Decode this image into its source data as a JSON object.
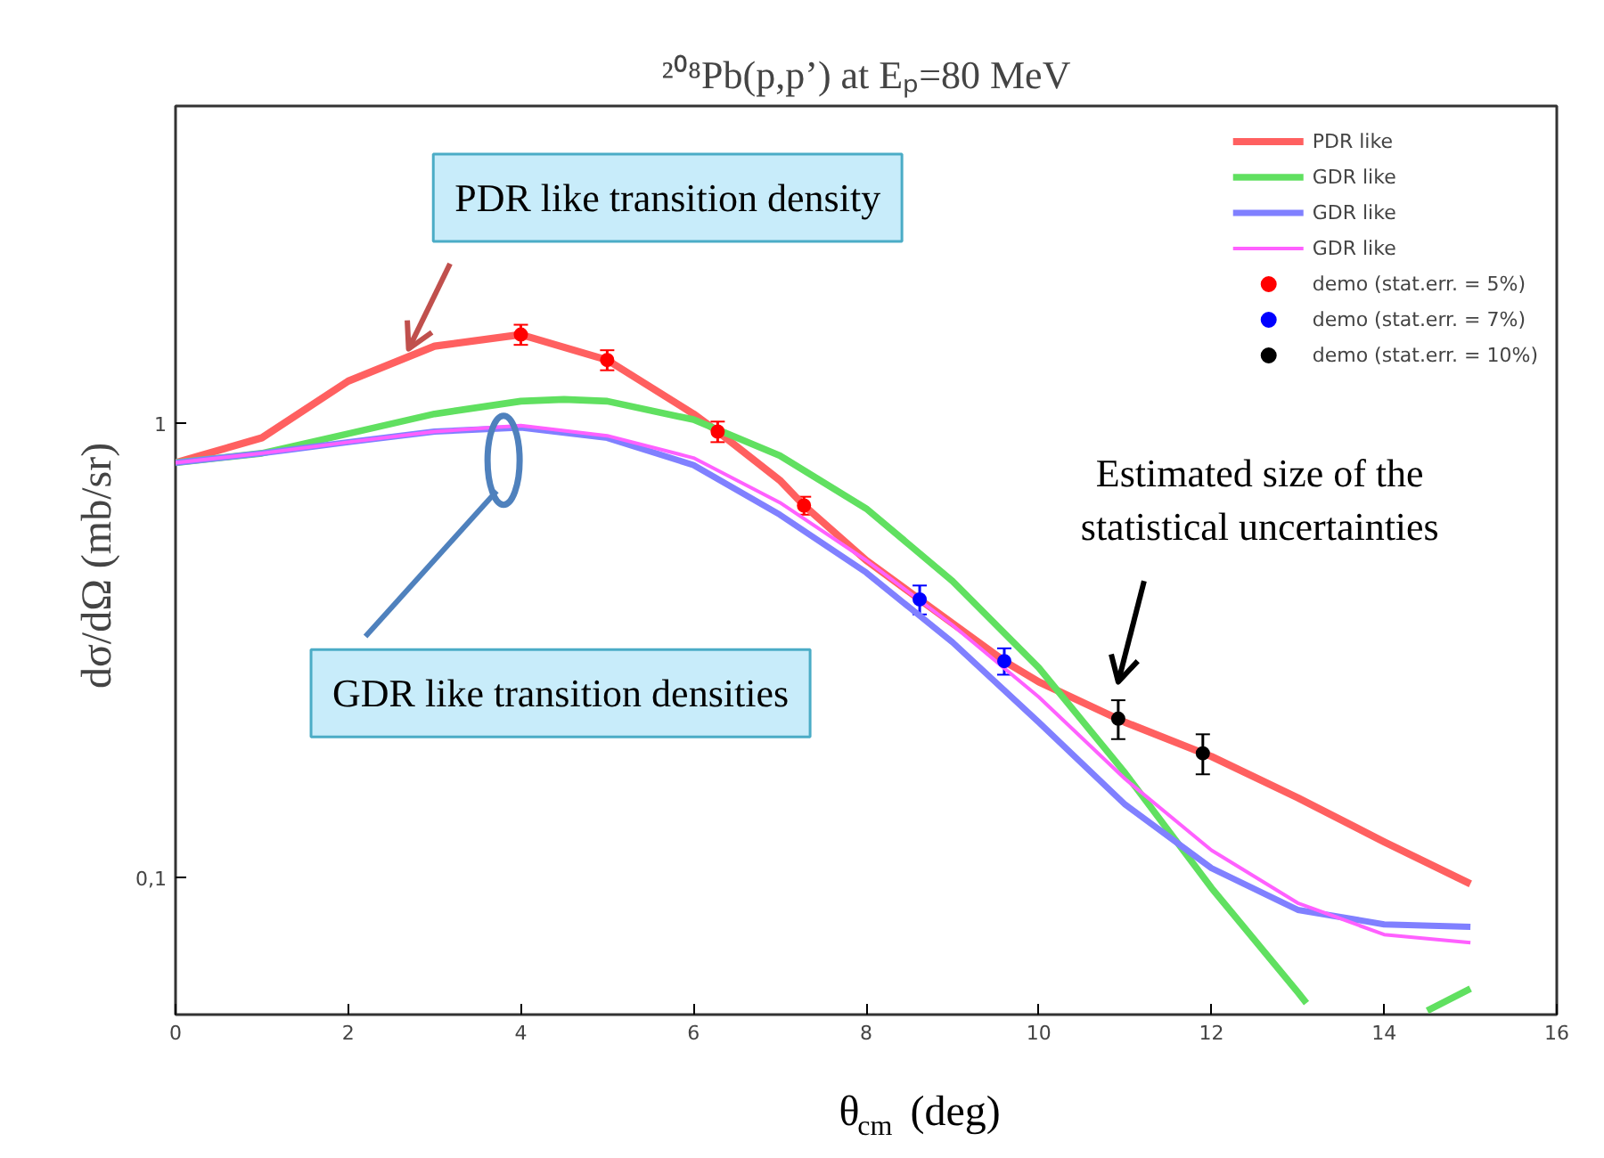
{
  "chart_data": {
    "type": "line",
    "title": "²⁰⁸Pb(p,p’) at Eₚ=80 MeV",
    "xlabel": "θ$_{cm}$  (deg)",
    "ylabel": "dσ/dΩ  (mb/sr)",
    "log": "y",
    "xlim": [
      0,
      16
    ],
    "ylim": [
      0.05,
      5
    ],
    "xticks": [
      0,
      2,
      4,
      6,
      8,
      10,
      12,
      14,
      16
    ],
    "yticks": [
      {
        "value": 0.1,
        "label": "0,1"
      },
      1
    ],
    "grid": false,
    "legend": "top right",
    "series": [
      {
        "name": "PDR like",
        "type": "line",
        "color": "#ff6060",
        "marker": "none",
        "x": [
          0,
          1,
          2,
          3,
          4,
          5,
          6,
          6.28,
          7,
          7.28,
          8,
          8.62,
          9.6,
          10,
          11,
          12,
          13,
          14,
          15
        ],
        "values": [
          0.82,
          0.93,
          1.24,
          1.48,
          1.57,
          1.38,
          1.05,
          0.96,
          0.75,
          0.66,
          0.5,
          0.41,
          0.3,
          0.27,
          0.22,
          0.185,
          0.15,
          0.12,
          0.097
        ]
      },
      {
        "name": "GDR like",
        "type": "line",
        "color": "#60e060",
        "marker": "none",
        "x": [
          0,
          1,
          2,
          3,
          4,
          4.5,
          5,
          6,
          7,
          8,
          9,
          10,
          11,
          12,
          13,
          13.1,
          13.8,
          14.5,
          15
        ],
        "values": [
          0.82,
          0.86,
          0.95,
          1.05,
          1.12,
          1.13,
          1.12,
          1.02,
          0.85,
          0.65,
          0.45,
          0.29,
          0.17,
          0.095,
          0.056,
          0.053,
          null,
          0.051,
          0.057
        ]
      },
      {
        "name": "GDR like",
        "type": "line",
        "color": "#8080ff",
        "marker": "none",
        "x": [
          0,
          1,
          2,
          3,
          4,
          5,
          6,
          7,
          8,
          9,
          10,
          11,
          12,
          13,
          14,
          15
        ],
        "values": [
          0.82,
          0.86,
          0.91,
          0.96,
          0.98,
          0.93,
          0.81,
          0.63,
          0.47,
          0.33,
          0.22,
          0.145,
          0.105,
          0.085,
          0.079,
          0.078
        ]
      },
      {
        "name": "GDR like",
        "type": "line",
        "color": "#ff60ff",
        "marker": "none",
        "x": [
          0,
          1,
          2,
          3,
          4,
          5,
          6,
          7,
          8,
          9,
          10,
          11,
          12,
          13,
          14,
          15
        ],
        "values": [
          0.82,
          0.86,
          0.91,
          0.96,
          0.99,
          0.94,
          0.84,
          0.67,
          0.5,
          0.36,
          0.25,
          0.165,
          0.115,
          0.088,
          0.075,
          0.072
        ]
      },
      {
        "name": "demo (stat.err. = 5%)",
        "type": "scatter",
        "color": "#ff0000",
        "marker": "circle",
        "x": [
          4,
          5,
          6.28,
          7.28
        ],
        "values": [
          1.57,
          1.38,
          0.96,
          0.66
        ],
        "errors": [
          0.08,
          0.07,
          0.05,
          0.03
        ]
      },
      {
        "name": "demo (stat.err. = 7%)",
        "type": "scatter",
        "color": "#0000ff",
        "marker": "circle",
        "x": [
          8.62,
          9.6
        ],
        "values": [
          0.41,
          0.3
        ],
        "errors": [
          0.03,
          0.02
        ]
      },
      {
        "name": "demo (stat.err. = 10%)",
        "type": "scatter",
        "color": "#000000",
        "marker": "circle",
        "x": [
          10.92,
          11.9
        ],
        "values": [
          0.224,
          0.188
        ],
        "errors": [
          0.022,
          0.019
        ]
      }
    ],
    "annotations": [
      {
        "text": "PDR like transition density",
        "x": 2.7,
        "y": 1.46
      },
      "GDR like transition densities",
      "Estimated size of the\nstatistical uncertainties"
    ]
  }
}
